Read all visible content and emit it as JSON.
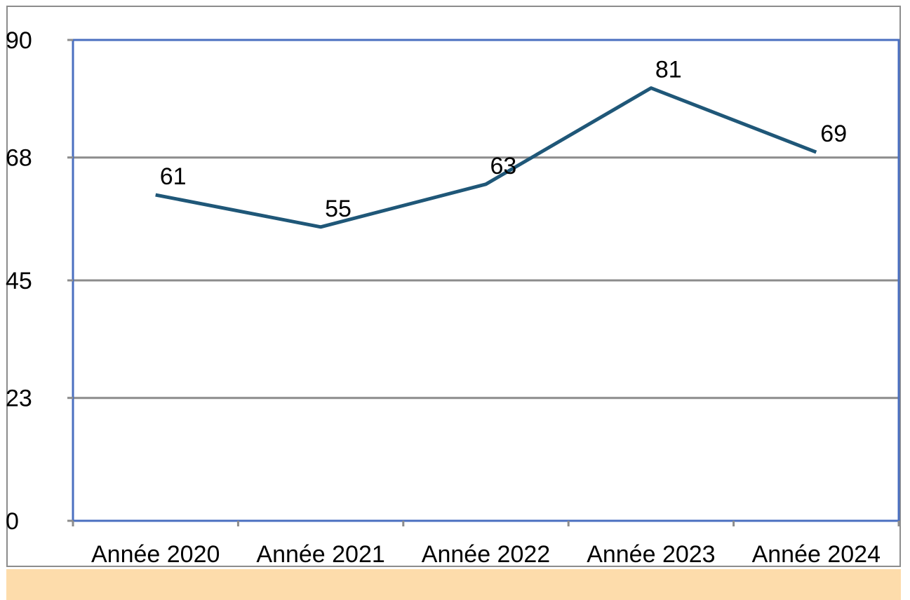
{
  "chart_data": {
    "type": "line",
    "title": "",
    "xlabel": "",
    "ylabel": "",
    "categories": [
      "Année 2020",
      "Année 2021",
      "Année 2022",
      "Année 2023",
      "Année 2024"
    ],
    "series": [
      {
        "values": [
          61,
          55,
          63,
          81,
          69
        ],
        "labels": [
          "61",
          "55",
          "63",
          "81",
          "69"
        ]
      }
    ],
    "ylim": [
      0,
      90
    ],
    "yticks": [
      0,
      23,
      45,
      68,
      90
    ],
    "ytick_labels": [
      "0",
      "23",
      "45",
      "68",
      "90"
    ],
    "grid": true,
    "legend": "none",
    "colors": {
      "line": "#1f5778",
      "plot_border": "#4a6fc0",
      "gridline": "#8c8c8c",
      "footer_band": "#fddcab"
    }
  }
}
